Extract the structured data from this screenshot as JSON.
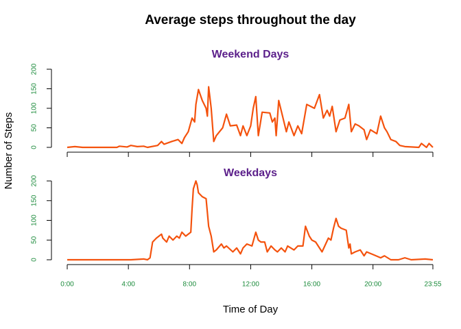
{
  "title": "Average steps throughout the day",
  "xlabel": "Time of Day",
  "ylabel": "Number of Steps",
  "chart_data": [
    {
      "type": "line",
      "title": "Weekend Days",
      "color": "#f4520d",
      "x": [
        0,
        30,
        60,
        195,
        205,
        235,
        250,
        275,
        300,
        315,
        355,
        370,
        380,
        410,
        435,
        450,
        460,
        475,
        490,
        500,
        505,
        515,
        530,
        545,
        550,
        555,
        565,
        575,
        585,
        610,
        625,
        635,
        640,
        665,
        680,
        690,
        705,
        720,
        730,
        740,
        750,
        765,
        795,
        805,
        815,
        820,
        830,
        845,
        860,
        870,
        890,
        905,
        920,
        940,
        970,
        990,
        1005,
        1020,
        1030,
        1040,
        1055,
        1070,
        1090,
        1105,
        1115,
        1130,
        1145,
        1165,
        1175,
        1190,
        1215,
        1230,
        1245,
        1255,
        1270,
        1290,
        1305,
        1325,
        1380,
        1390,
        1410,
        1420,
        1435
      ],
      "values": [
        0,
        2,
        0,
        0,
        3,
        1,
        5,
        2,
        3,
        0,
        5,
        15,
        8,
        15,
        20,
        10,
        25,
        40,
        75,
        65,
        110,
        148,
        120,
        100,
        80,
        155,
        100,
        15,
        30,
        50,
        85,
        65,
        55,
        57,
        30,
        55,
        30,
        55,
        100,
        130,
        30,
        90,
        88,
        65,
        75,
        30,
        120,
        80,
        40,
        65,
        30,
        55,
        35,
        110,
        100,
        135,
        75,
        95,
        80,
        105,
        40,
        70,
        75,
        110,
        40,
        60,
        55,
        45,
        20,
        45,
        35,
        80,
        50,
        40,
        20,
        15,
        5,
        2,
        0,
        10,
        0,
        10,
        0
      ],
      "xlim": [
        0,
        1435
      ],
      "ylim": [
        0,
        200
      ],
      "yticks": [
        0,
        50,
        100,
        150,
        200
      ]
    },
    {
      "type": "line",
      "title": "Weekdays",
      "color": "#f4520d",
      "x": [
        0,
        85,
        165,
        250,
        300,
        315,
        325,
        335,
        350,
        370,
        375,
        390,
        400,
        415,
        430,
        440,
        450,
        465,
        475,
        485,
        490,
        495,
        505,
        510,
        515,
        530,
        545,
        550,
        555,
        565,
        575,
        585,
        605,
        615,
        625,
        650,
        665,
        680,
        690,
        705,
        725,
        740,
        750,
        760,
        775,
        785,
        800,
        815,
        825,
        840,
        855,
        865,
        890,
        905,
        925,
        935,
        950,
        960,
        975,
        990,
        1000,
        1025,
        1035,
        1045,
        1055,
        1065,
        1075,
        1095,
        1105,
        1110,
        1115,
        1130,
        1150,
        1165,
        1175,
        1205,
        1230,
        1245,
        1270,
        1300,
        1325,
        1350,
        1405,
        1435
      ],
      "values": [
        0,
        0,
        0,
        0,
        2,
        0,
        5,
        45,
        55,
        65,
        55,
        45,
        60,
        50,
        60,
        55,
        70,
        60,
        65,
        70,
        130,
        180,
        200,
        190,
        170,
        160,
        155,
        120,
        85,
        60,
        20,
        25,
        40,
        30,
        35,
        20,
        30,
        15,
        30,
        40,
        35,
        70,
        50,
        45,
        45,
        20,
        35,
        25,
        20,
        30,
        20,
        35,
        25,
        35,
        35,
        85,
        60,
        50,
        45,
        30,
        20,
        55,
        50,
        80,
        105,
        85,
        80,
        75,
        30,
        40,
        15,
        20,
        25,
        10,
        20,
        12,
        5,
        10,
        0,
        0,
        5,
        0,
        2,
        0
      ],
      "xlim": [
        0,
        1435
      ],
      "ylim": [
        0,
        200
      ],
      "yticks": [
        0,
        50,
        100,
        150,
        200
      ],
      "xticks": [
        {
          "value": 0,
          "label": "0:00"
        },
        {
          "value": 240,
          "label": "4:00"
        },
        {
          "value": 480,
          "label": "8:00"
        },
        {
          "value": 720,
          "label": "12:00"
        },
        {
          "value": 960,
          "label": "16:00"
        },
        {
          "value": 1200,
          "label": "20:00"
        },
        {
          "value": 1435,
          "label": "23:55"
        }
      ]
    }
  ]
}
